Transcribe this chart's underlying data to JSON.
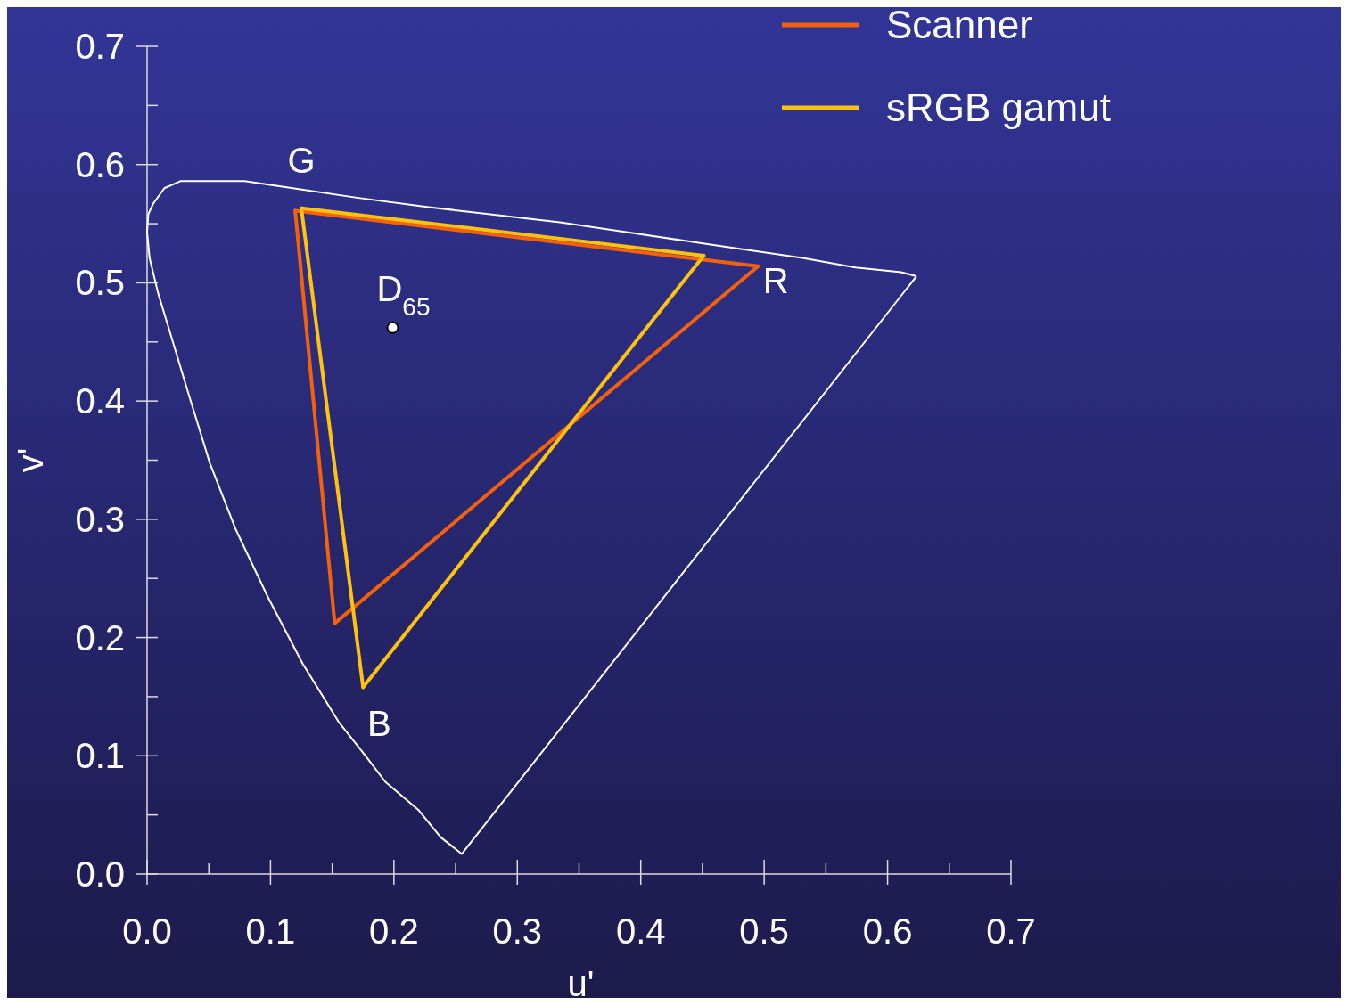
{
  "chart_data": {
    "type": "line",
    "xlabel": "u'",
    "ylabel": "v'",
    "xlim": [
      0,
      0.7
    ],
    "ylim": [
      0,
      0.7
    ],
    "xticks": [
      {
        "value": 0,
        "label": "0.0"
      },
      0.1,
      0.2,
      0.3,
      0.4,
      0.5,
      0.6,
      0.7,
      {
        "value": 0.05,
        "label": null
      },
      {
        "value": 0.15,
        "label": null
      },
      {
        "value": 0.25,
        "label": null
      },
      {
        "value": 0.35,
        "label": null
      },
      {
        "value": 0.45,
        "label": null
      },
      {
        "value": 0.55,
        "label": null
      },
      {
        "value": 0.65,
        "label": null
      }
    ],
    "yticks": [
      {
        "value": 0,
        "label": "0.0"
      },
      0.1,
      0.2,
      0.3,
      0.4,
      0.5,
      0.6,
      0.7,
      {
        "value": 0.05,
        "label": null
      },
      {
        "value": 0.15,
        "label": null
      },
      {
        "value": 0.25,
        "label": null
      },
      {
        "value": 0.35,
        "label": null
      },
      {
        "value": 0.45,
        "label": null
      },
      {
        "value": 0.55,
        "label": null
      },
      {
        "value": 0.65,
        "label": null
      }
    ],
    "grid": false,
    "legend": "top right",
    "marker": "none",
    "line_style": "solid",
    "series": [
      {
        "color": "#ffffff",
        "x": [
          0.623,
          0.255,
          0.238,
          0.22,
          0.193,
          0.177,
          0.155,
          0.126,
          0.098,
          0.072,
          0.051,
          0.033,
          0.018,
          0.009,
          0.002,
          0,
          0.001,
          0.005,
          0.014,
          0.027,
          0.047,
          0.079,
          0.112,
          0.17,
          0.228,
          0.278,
          0.336,
          0.387,
          0.459,
          0.531,
          0.574,
          0.611,
          0.622
        ],
        "values": [
          0.505,
          0.017,
          0.031,
          0.054,
          0.078,
          0.1,
          0.129,
          0.178,
          0.234,
          0.291,
          0.347,
          0.408,
          0.46,
          0.491,
          0.521,
          0.543,
          0.558,
          0.567,
          0.58,
          0.586,
          0.586,
          0.586,
          0.581,
          0.572,
          0.564,
          0.558,
          0.551,
          0.543,
          0.532,
          0.521,
          0.513,
          0.509,
          0.506
        ]
      },
      {
        "name": "Scanner",
        "color": "#f5600a",
        "x": [
          0.12,
          0.495
        ],
        "values": [
          0.561,
          0.514
        ]
      },
      {
        "color": "#f5600a",
        "x": [
          0.152,
          0.495
        ],
        "values": [
          0.212,
          0.514
        ]
      },
      {
        "color": "#f5600a",
        "x": [
          0.12,
          0.152
        ],
        "values": [
          0.561,
          0.212
        ]
      },
      {
        "name": "sRGB gamut",
        "color": "#ffc20e",
        "x": [
          0.125,
          0.451
        ],
        "values": [
          0.563,
          0.523
        ]
      },
      {
        "color": "#ffc20e",
        "x": [
          0.175,
          0.451
        ],
        "values": [
          0.158,
          0.523
        ]
      },
      {
        "color": "#ffc20e",
        "x": [
          0.125,
          0.175
        ],
        "values": [
          0.563,
          0.158
        ]
      },
      {
        "type": "scatter",
        "marker": "circle",
        "color": "#ffffff",
        "x": [
          0.199
        ],
        "values": [
          0.462
        ]
      }
    ],
    "annotations": [
      {
        "text": "G",
        "x": 0.125,
        "y": 0.563
      },
      {
        "text": "R",
        "x": 0.495,
        "y": 0.514
      },
      {
        "text": "B",
        "x": 0.175,
        "y": 0.158
      },
      {
        "text": "D$_{65}$",
        "x": 0.199,
        "y": 0.462
      }
    ]
  }
}
